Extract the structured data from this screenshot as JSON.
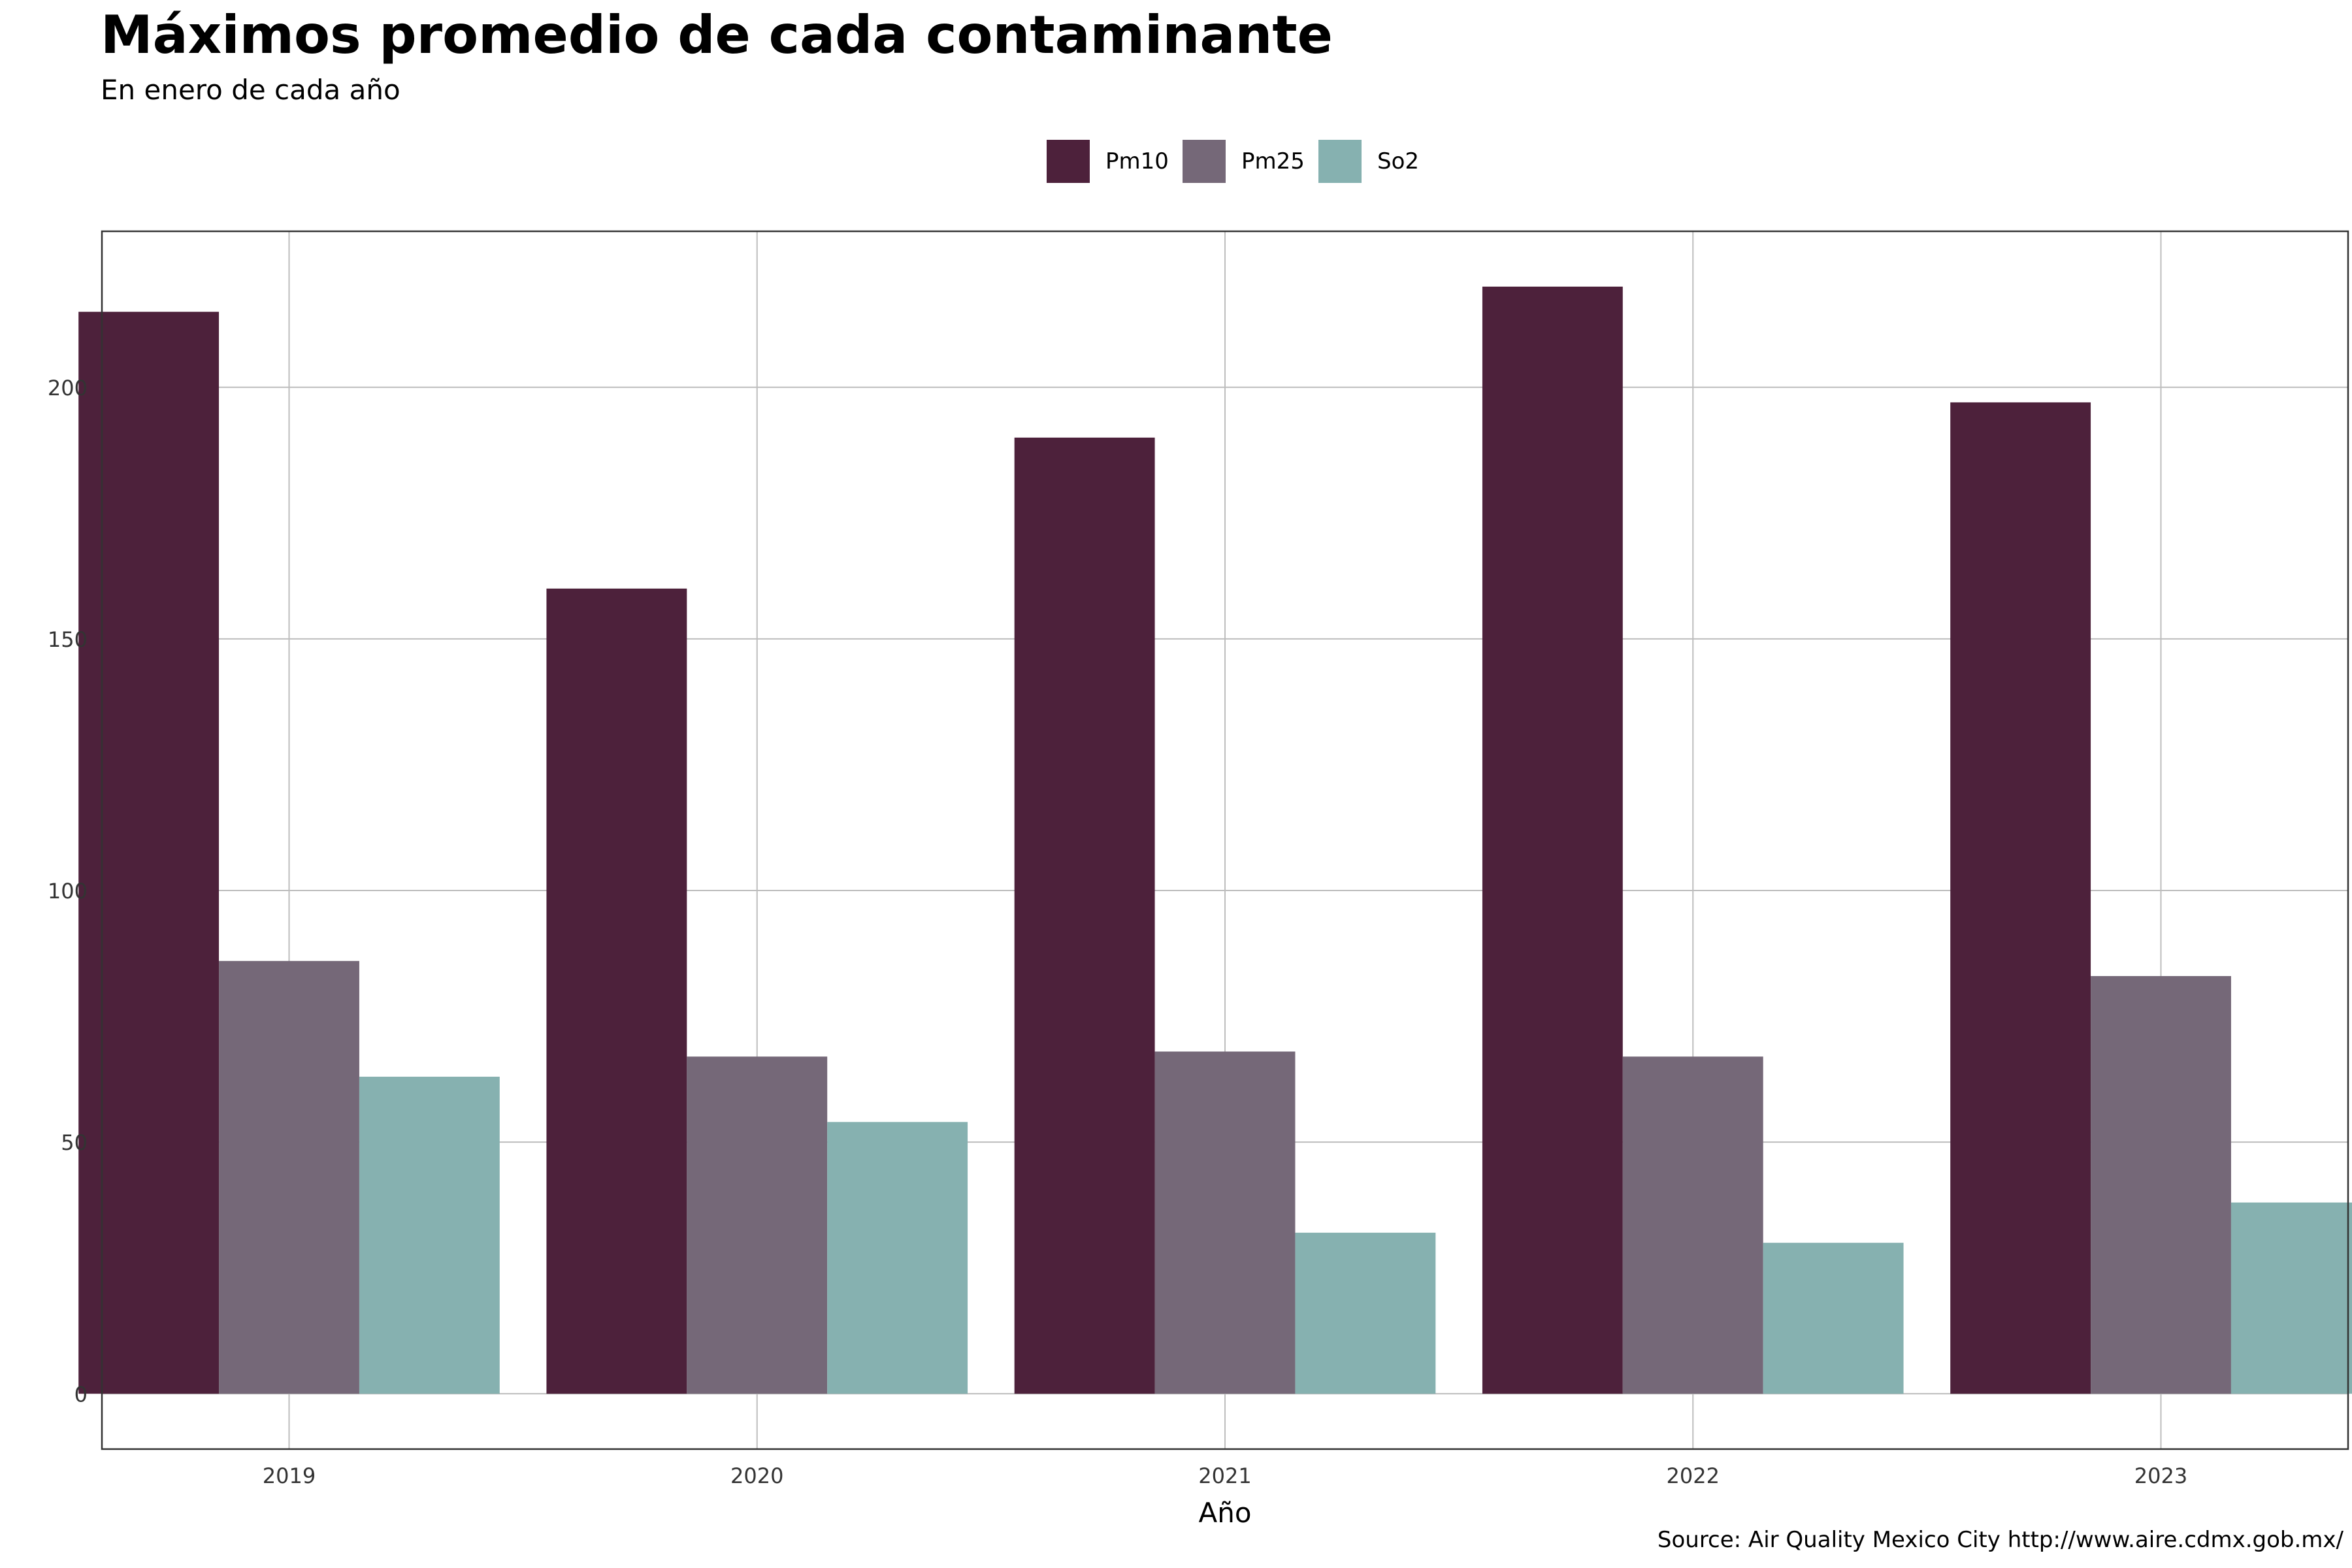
{
  "chart_data": {
    "type": "bar",
    "title": "Máximos promedio de cada contaminante",
    "subtitle": "En enero de cada año",
    "xlabel": "Año",
    "ylabel": "",
    "caption": "Source: Air Quality Mexico City http://www.aire.cdmx.gob.mx/",
    "categories": [
      "2019",
      "2020",
      "2021",
      "2022",
      "2023"
    ],
    "series": [
      {
        "name": "Pm10",
        "color": "#4d213b",
        "values": [
          215,
          160,
          190,
          220,
          197
        ]
      },
      {
        "name": "Pm25",
        "color": "#756878",
        "values": [
          86,
          67,
          68,
          67,
          83
        ]
      },
      {
        "name": "So2",
        "color": "#86b1b0",
        "values": [
          63,
          54,
          32,
          30,
          38
        ]
      }
    ],
    "ylim": [
      -11,
      231
    ],
    "yticks": [
      0,
      50,
      100,
      150,
      200
    ],
    "grid": true,
    "legend_position": "top"
  }
}
